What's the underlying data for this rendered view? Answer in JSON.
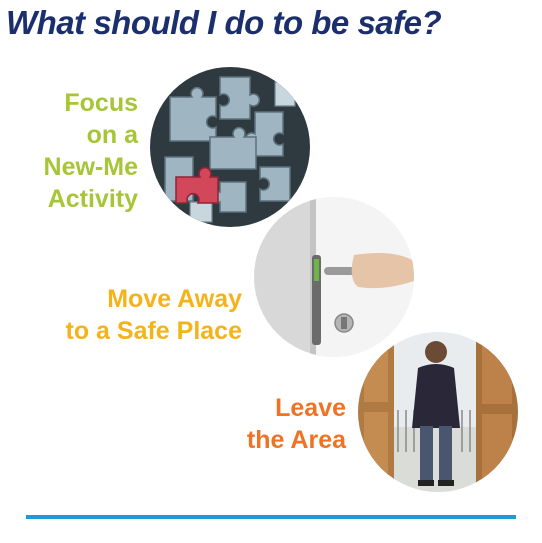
{
  "title": "What should I do to be safe?",
  "steps": [
    {
      "lines": [
        "Focus",
        "on a",
        "New-Me",
        "Activity"
      ],
      "color": "#a6c537",
      "image": "puzzle-pieces-photo"
    },
    {
      "lines": [
        "Move Away",
        "to a Safe Place"
      ],
      "color": "#f5b31a",
      "image": "door-handle-photo"
    },
    {
      "lines": [
        "Leave",
        "the Area"
      ],
      "color": "#ee7324",
      "image": "person-leaving-doorway-photo"
    }
  ],
  "colors": {
    "title": "#1b2f6e",
    "rule": "#1f9ad6"
  }
}
